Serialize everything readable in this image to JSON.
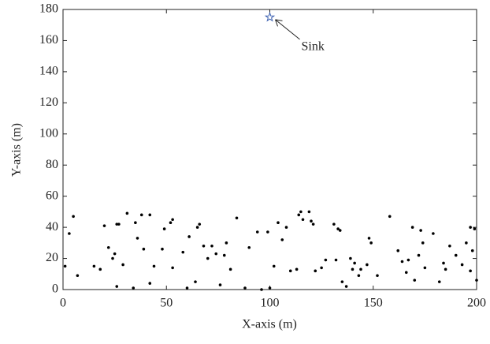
{
  "chart_data": {
    "type": "scatter",
    "xlabel": "X-axis (m)",
    "ylabel": "Y-axis (m)",
    "x": [
      1,
      3,
      5,
      7,
      15,
      18,
      20,
      22,
      24,
      25,
      26,
      26,
      27,
      29,
      31,
      34,
      35,
      36,
      38,
      39,
      42,
      42,
      44,
      48,
      49,
      52,
      53,
      53,
      58,
      60,
      61,
      64,
      65,
      66,
      68,
      70,
      72,
      74,
      76,
      78,
      79,
      81,
      84,
      88,
      90,
      94,
      96,
      99,
      100,
      102,
      104,
      106,
      108,
      110,
      113,
      114,
      115,
      116,
      119,
      120,
      121,
      122,
      125,
      127,
      131,
      132,
      133,
      134,
      135,
      137,
      139,
      140,
      141,
      143,
      144,
      147,
      148,
      149,
      152,
      158,
      162,
      164,
      166,
      167,
      169,
      170,
      172,
      173,
      174,
      175,
      179,
      182,
      184,
      185,
      187,
      190,
      193,
      195,
      197,
      198,
      199,
      200,
      197
    ],
    "values": [
      15,
      36,
      47,
      9,
      15,
      13,
      41,
      27,
      20,
      23,
      42,
      2,
      42,
      16,
      49,
      1,
      43,
      33,
      48,
      26,
      48,
      4,
      15,
      26,
      39,
      43,
      45,
      14,
      24,
      1,
      34,
      5,
      40,
      42,
      28,
      20,
      28,
      23,
      3,
      22,
      30,
      13,
      46,
      1,
      27,
      37,
      0,
      37,
      1,
      15,
      43,
      32,
      40,
      12,
      13,
      48,
      50,
      45,
      50,
      44,
      42,
      12,
      14,
      19,
      42,
      19,
      39,
      38,
      5,
      2,
      20,
      13,
      17,
      9,
      13,
      16,
      33,
      30,
      9,
      47,
      25,
      18,
      11,
      19,
      40,
      6,
      22,
      38,
      30,
      14,
      36,
      5,
      17,
      13,
      28,
      22,
      16,
      30,
      40,
      25,
      39,
      6,
      12
    ],
    "color": "#000000",
    "sink": {
      "text": "Sink",
      "x": 100,
      "y": 175,
      "color": "#3a5fb0"
    },
    "xlim": [
      0,
      200
    ],
    "xticks": [
      0,
      50,
      100,
      150,
      200
    ],
    "ylim": [
      0,
      180
    ],
    "yticks": [
      0,
      20,
      40,
      60,
      80,
      100,
      120,
      140,
      160,
      180
    ]
  }
}
